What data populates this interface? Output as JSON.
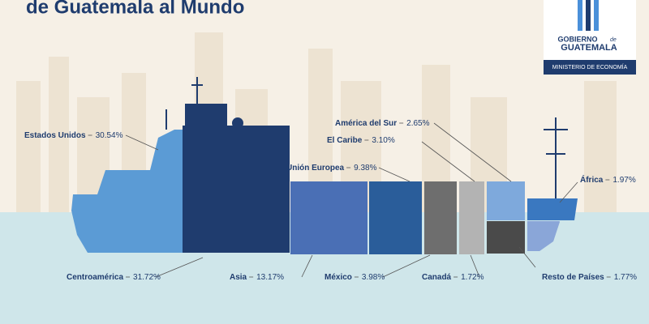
{
  "chart_data": {
    "type": "ship",
    "title": "de Guatemala al Mundo",
    "categories": [
      "Estados Unidos",
      "Centroamérica",
      "Asia",
      "Unión Europea",
      "México",
      "El Caribe",
      "Canadá",
      "América del Sur",
      "Resto de Países",
      "África"
    ],
    "values": [
      30.54,
      31.72,
      13.17,
      9.38,
      3.98,
      3.1,
      1.72,
      2.65,
      1.77,
      1.97
    ],
    "value_labels": [
      "30.54%",
      "31.72%",
      "13.17%",
      "9.38%",
      "3.98%",
      "3.10%",
      "1.72%",
      "2.65%",
      "1.77%",
      "1.97%"
    ],
    "colors": [
      "#5b9bd5",
      "#1f3c6e",
      "#4a6fb5",
      "#2a5d9a",
      "#6e6e6e",
      "#b3b3b3",
      "#4a4a4a",
      "#7ea9dc",
      "#8aa6d8",
      "#3a78c0"
    ]
  },
  "logo": {
    "line1": "GOBIERNO",
    "line1b": "de",
    "line2": "GUATEMALA",
    "ministry": "MINISTERIO DE ECONOMÍA"
  }
}
